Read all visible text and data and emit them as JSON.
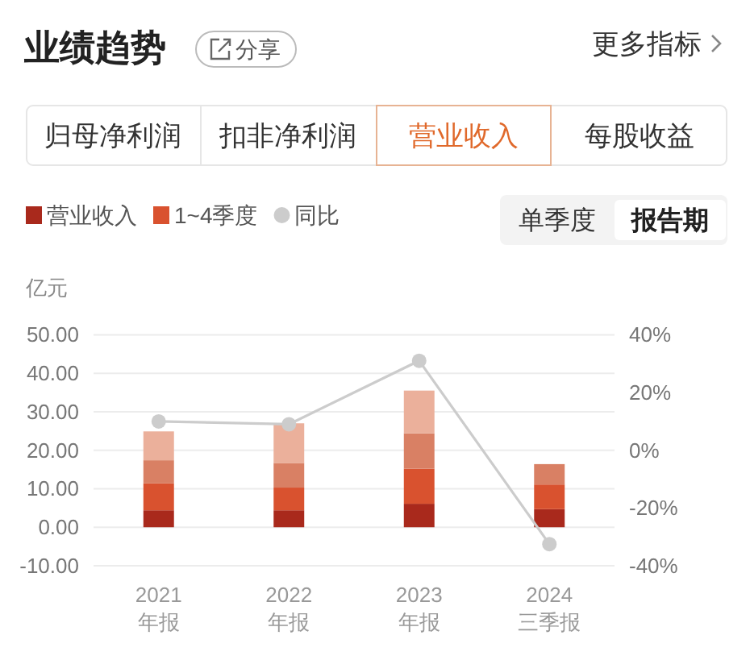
{
  "chart_data": {
    "type": "bar",
    "title": "业绩趋势",
    "ylabel": "亿元",
    "categories": [
      "2021\n年报",
      "2022\n年报",
      "2023\n年报",
      "2024\n三季报"
    ],
    "series": [
      {
        "name": "营业收入",
        "color": "#a9291c",
        "values": [
          4.4,
          4.4,
          6.1,
          4.7
        ]
      },
      {
        "name": "1~4季度",
        "color": "#d9522f",
        "values": [
          7.0,
          5.9,
          9.1,
          6.4
        ]
      },
      {
        "color": "#d98064",
        "values": [
          6.0,
          6.4,
          9.2,
          5.3
        ]
      },
      {
        "color": "#ebb09b",
        "values": [
          7.5,
          10.3,
          11.1,
          null
        ]
      },
      {
        "name": "同比",
        "type": "line",
        "axis": "y2",
        "color": "#cccccc",
        "values": [
          10,
          9,
          31,
          -32.5
        ]
      }
    ],
    "stacked": true,
    "ylim": [
      -10,
      50
    ],
    "yticks": [
      {
        "value": -10,
        "label": "-10.00"
      },
      {
        "value": 0,
        "label": "0.00"
      },
      {
        "value": 10,
        "label": "10.00"
      },
      {
        "value": 20,
        "label": "20.00"
      },
      {
        "value": 30,
        "label": "30.00"
      },
      {
        "value": 40,
        "label": "40.00"
      },
      {
        "value": 50,
        "label": "50.00"
      }
    ],
    "y2lim": [
      -40,
      40
    ],
    "y2ticks": [
      {
        "value": -40,
        "label": "-40%"
      },
      {
        "value": -20,
        "label": "-20%"
      },
      {
        "value": 0,
        "label": "0%"
      },
      {
        "value": 20,
        "label": "20%"
      },
      {
        "value": 40,
        "label": "40%"
      }
    ],
    "grid": "y",
    "legend": "top left",
    "marker": "circle",
    "annotations": [
      "分享",
      "更多指标",
      "归母净利润",
      "扣非净利润",
      "营业收入",
      "每股收益",
      "单季度",
      "报告期"
    ]
  }
}
